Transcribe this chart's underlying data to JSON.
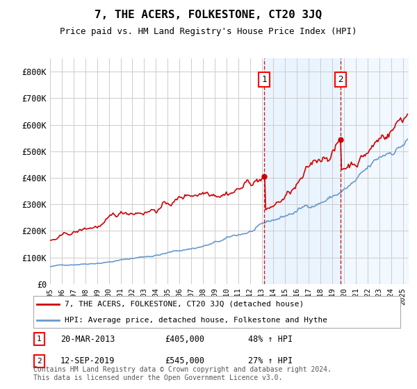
{
  "title": "7, THE ACERS, FOLKESTONE, CT20 3JQ",
  "subtitle": "Price paid vs. HM Land Registry's House Price Index (HPI)",
  "xlim_start": 1995.0,
  "xlim_end": 2025.5,
  "ylim_min": 0,
  "ylim_max": 850000,
  "yticks": [
    0,
    100000,
    200000,
    300000,
    400000,
    500000,
    600000,
    700000,
    800000
  ],
  "ytick_labels": [
    "£0",
    "£100K",
    "£200K",
    "£300K",
    "£400K",
    "£500K",
    "£600K",
    "£700K",
    "£800K"
  ],
  "xtick_years": [
    1995,
    1996,
    1997,
    1998,
    1999,
    2000,
    2001,
    2002,
    2003,
    2004,
    2005,
    2006,
    2007,
    2008,
    2009,
    2010,
    2011,
    2012,
    2013,
    2014,
    2015,
    2016,
    2017,
    2018,
    2019,
    2020,
    2021,
    2022,
    2023,
    2024,
    2025
  ],
  "sale1_x": 2013.22,
  "sale1_y": 405000,
  "sale1_label": "1",
  "sale1_date": "20-MAR-2013",
  "sale1_price": "£405,000",
  "sale1_hpi": "48% ↑ HPI",
  "sale2_x": 2019.72,
  "sale2_y": 545000,
  "sale2_label": "2",
  "sale2_date": "12-SEP-2019",
  "sale2_price": "£545,000",
  "sale2_hpi": "27% ↑ HPI",
  "red_line_color": "#cc0000",
  "blue_line_color": "#6699cc",
  "shaded_region_color": "#ddeeff",
  "legend_label_red": "7, THE ACERS, FOLKESTONE, CT20 3JQ (detached house)",
  "legend_label_blue": "HPI: Average price, detached house, Folkestone and Hythe",
  "footer": "Contains HM Land Registry data © Crown copyright and database right 2024.\nThis data is licensed under the Open Government Licence v3.0.",
  "background_color": "#ffffff",
  "grid_color": "#cccccc"
}
